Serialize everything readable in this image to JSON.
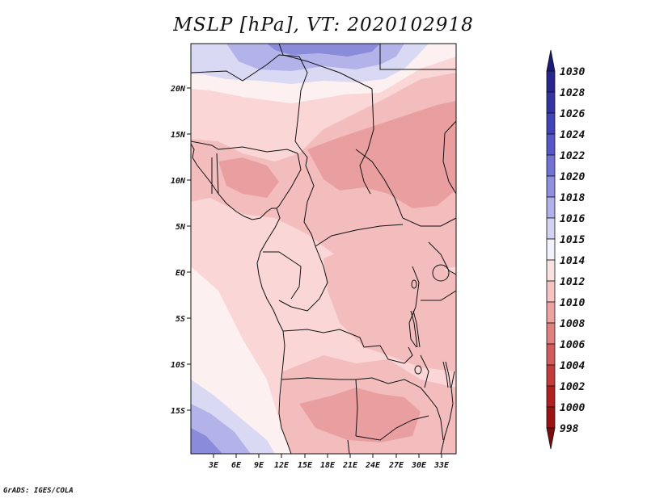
{
  "title": "MSLP [hPa], VT: 2020102918",
  "credit": "GrADS: IGES/COLA",
  "map": {
    "lat_labels": [
      "20N",
      "15N",
      "10N",
      "5N",
      "EQ",
      "5S",
      "10S",
      "15S"
    ],
    "lon_labels": [
      "3E",
      "6E",
      "9E",
      "12E",
      "15E",
      "18E",
      "21E",
      "24E",
      "27E",
      "30E",
      "33E"
    ]
  },
  "colorbar": {
    "levels": [
      "1030",
      "1028",
      "1026",
      "1024",
      "1022",
      "1020",
      "1018",
      "1016",
      "1015",
      "1014",
      "1012",
      "1010",
      "1008",
      "1006",
      "1004",
      "1002",
      "1000",
      "998"
    ],
    "colors": [
      "#1a1a7a",
      "#26268e",
      "#3333a3",
      "#4343b8",
      "#5757c9",
      "#7272d6",
      "#8f8fe0",
      "#b0b0ea",
      "#d2d2f4",
      "#f2f2fc",
      "#fbe2e2",
      "#f7c4c4",
      "#eea3a3",
      "#e08080",
      "#d25c5c",
      "#c43b3b",
      "#b02020",
      "#9a1414",
      "#7e0c0c"
    ]
  },
  "colors": {
    "pressure_1008": "#e99f9f",
    "pressure_1010": "#f3bdbd",
    "pressure_1012": "#fad6d6",
    "pressure_1014": "#fdf0f0",
    "pressure_1016": "#d9d9f4",
    "pressure_1018": "#b3b3ea",
    "pressure_1020": "#8b8bdc",
    "border": "#111111"
  }
}
